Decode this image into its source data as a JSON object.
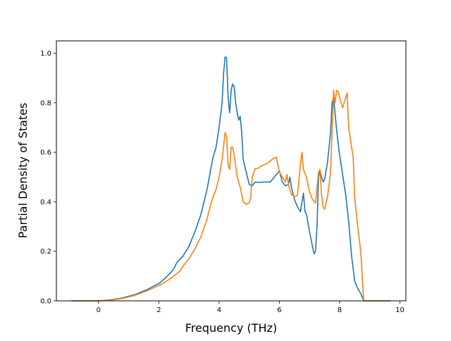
{
  "chart_data": {
    "type": "line",
    "title": "",
    "xlabel": "Frequency (THz)",
    "ylabel": "Partial Density of States",
    "xlim": [
      -1.4,
      10.2
    ],
    "ylim": [
      0.0,
      1.05
    ],
    "xticks": [
      "0",
      "2",
      "4",
      "6",
      "8",
      "10"
    ],
    "yticks": [
      "0.0",
      "0.2",
      "0.4",
      "0.6",
      "0.8",
      "1.0"
    ],
    "grid": false,
    "legend": "none",
    "series": [
      {
        "color": "#1f77b4",
        "points": [
          [
            -0.9,
            0.0
          ],
          [
            0.0,
            0.0
          ],
          [
            0.4,
            0.004
          ],
          [
            0.8,
            0.012
          ],
          [
            1.2,
            0.025
          ],
          [
            1.6,
            0.045
          ],
          [
            2.0,
            0.07
          ],
          [
            2.2,
            0.09
          ],
          [
            2.4,
            0.115
          ],
          [
            2.5,
            0.13
          ],
          [
            2.6,
            0.155
          ],
          [
            2.8,
            0.18
          ],
          [
            3.0,
            0.22
          ],
          [
            3.2,
            0.28
          ],
          [
            3.4,
            0.35
          ],
          [
            3.6,
            0.45
          ],
          [
            3.8,
            0.58
          ],
          [
            3.9,
            0.62
          ],
          [
            4.0,
            0.7
          ],
          [
            4.1,
            0.8
          ],
          [
            4.15,
            0.92
          ],
          [
            4.2,
            0.985
          ],
          [
            4.25,
            0.98
          ],
          [
            4.3,
            0.82
          ],
          [
            4.35,
            0.76
          ],
          [
            4.4,
            0.85
          ],
          [
            4.45,
            0.875
          ],
          [
            4.5,
            0.865
          ],
          [
            4.55,
            0.8
          ],
          [
            4.6,
            0.76
          ],
          [
            4.65,
            0.73
          ],
          [
            4.7,
            0.745
          ],
          [
            4.75,
            0.68
          ],
          [
            4.8,
            0.57
          ],
          [
            4.9,
            0.52
          ],
          [
            5.0,
            0.47
          ],
          [
            5.1,
            0.465
          ],
          [
            5.2,
            0.48
          ],
          [
            5.3,
            0.478
          ],
          [
            5.5,
            0.48
          ],
          [
            5.7,
            0.48
          ],
          [
            5.9,
            0.51
          ],
          [
            6.0,
            0.525
          ],
          [
            6.1,
            0.48
          ],
          [
            6.2,
            0.465
          ],
          [
            6.3,
            0.47
          ],
          [
            6.35,
            0.5
          ],
          [
            6.4,
            0.46
          ],
          [
            6.5,
            0.41
          ],
          [
            6.6,
            0.38
          ],
          [
            6.7,
            0.36
          ],
          [
            6.8,
            0.435
          ],
          [
            6.85,
            0.36
          ],
          [
            6.9,
            0.35
          ],
          [
            7.0,
            0.28
          ],
          [
            7.1,
            0.22
          ],
          [
            7.15,
            0.19
          ],
          [
            7.2,
            0.2
          ],
          [
            7.25,
            0.3
          ],
          [
            7.3,
            0.5
          ],
          [
            7.35,
            0.525
          ],
          [
            7.4,
            0.5
          ],
          [
            7.45,
            0.48
          ],
          [
            7.5,
            0.49
          ],
          [
            7.6,
            0.56
          ],
          [
            7.7,
            0.68
          ],
          [
            7.75,
            0.8
          ],
          [
            7.8,
            0.82
          ],
          [
            7.9,
            0.69
          ],
          [
            8.0,
            0.59
          ],
          [
            8.1,
            0.51
          ],
          [
            8.2,
            0.43
          ],
          [
            8.3,
            0.32
          ],
          [
            8.4,
            0.18
          ],
          [
            8.5,
            0.08
          ],
          [
            8.6,
            0.05
          ],
          [
            8.7,
            0.03
          ],
          [
            8.75,
            0.015
          ],
          [
            8.8,
            0.0
          ],
          [
            9.7,
            0.0
          ]
        ]
      },
      {
        "color": "#ff7f0e",
        "points": [
          [
            -0.9,
            0.0
          ],
          [
            0.0,
            0.0
          ],
          [
            0.4,
            0.003
          ],
          [
            0.8,
            0.01
          ],
          [
            1.2,
            0.022
          ],
          [
            1.6,
            0.04
          ],
          [
            2.0,
            0.062
          ],
          [
            2.2,
            0.075
          ],
          [
            2.4,
            0.092
          ],
          [
            2.6,
            0.11
          ],
          [
            2.7,
            0.12
          ],
          [
            2.8,
            0.14
          ],
          [
            3.0,
            0.17
          ],
          [
            3.2,
            0.21
          ],
          [
            3.4,
            0.26
          ],
          [
            3.6,
            0.33
          ],
          [
            3.7,
            0.38
          ],
          [
            3.8,
            0.42
          ],
          [
            3.9,
            0.45
          ],
          [
            4.0,
            0.5
          ],
          [
            4.1,
            0.57
          ],
          [
            4.2,
            0.68
          ],
          [
            4.25,
            0.66
          ],
          [
            4.3,
            0.55
          ],
          [
            4.35,
            0.53
          ],
          [
            4.4,
            0.62
          ],
          [
            4.45,
            0.62
          ],
          [
            4.5,
            0.59
          ],
          [
            4.6,
            0.5
          ],
          [
            4.7,
            0.46
          ],
          [
            4.8,
            0.4
          ],
          [
            4.9,
            0.39
          ],
          [
            5.0,
            0.395
          ],
          [
            5.05,
            0.42
          ],
          [
            5.1,
            0.5
          ],
          [
            5.2,
            0.535
          ],
          [
            5.3,
            0.535
          ],
          [
            5.4,
            0.545
          ],
          [
            5.6,
            0.555
          ],
          [
            5.8,
            0.575
          ],
          [
            5.9,
            0.58
          ],
          [
            6.0,
            0.52
          ],
          [
            6.1,
            0.5
          ],
          [
            6.2,
            0.48
          ],
          [
            6.25,
            0.51
          ],
          [
            6.3,
            0.47
          ],
          [
            6.4,
            0.43
          ],
          [
            6.5,
            0.42
          ],
          [
            6.6,
            0.425
          ],
          [
            6.7,
            0.55
          ],
          [
            6.75,
            0.6
          ],
          [
            6.8,
            0.53
          ],
          [
            6.9,
            0.5
          ],
          [
            7.0,
            0.44
          ],
          [
            7.1,
            0.41
          ],
          [
            7.2,
            0.395
          ],
          [
            7.3,
            0.52
          ],
          [
            7.35,
            0.53
          ],
          [
            7.4,
            0.43
          ],
          [
            7.45,
            0.38
          ],
          [
            7.5,
            0.37
          ],
          [
            7.6,
            0.42
          ],
          [
            7.7,
            0.52
          ],
          [
            7.8,
            0.85
          ],
          [
            7.85,
            0.8
          ],
          [
            7.9,
            0.85
          ],
          [
            7.95,
            0.845
          ],
          [
            8.0,
            0.82
          ],
          [
            8.1,
            0.78
          ],
          [
            8.2,
            0.82
          ],
          [
            8.25,
            0.84
          ],
          [
            8.3,
            0.7
          ],
          [
            8.4,
            0.62
          ],
          [
            8.45,
            0.58
          ],
          [
            8.5,
            0.42
          ],
          [
            8.6,
            0.3
          ],
          [
            8.7,
            0.2
          ],
          [
            8.75,
            0.1
          ],
          [
            8.8,
            0.0
          ],
          [
            9.7,
            0.0
          ]
        ]
      }
    ]
  }
}
